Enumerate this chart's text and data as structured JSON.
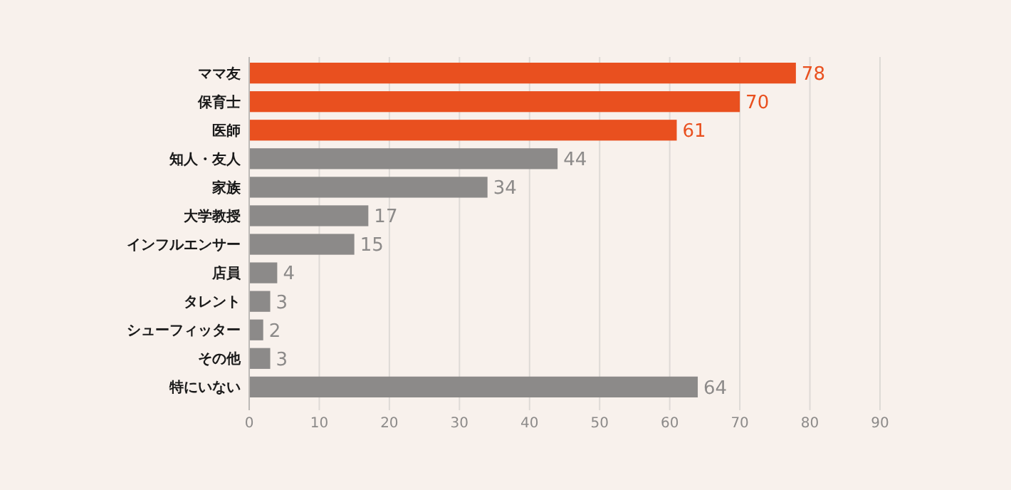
{
  "chart_data": {
    "type": "bar",
    "orientation": "horizontal",
    "categories": [
      "ママ友",
      "保育士",
      "医師",
      "知人・友人",
      "家族",
      "大学教授",
      "インフルエンサー",
      "店員",
      "タレント",
      "シューフィッター",
      "その他",
      "特にいない"
    ],
    "values": [
      78,
      70,
      61,
      44,
      34,
      17,
      15,
      4,
      3,
      2,
      3,
      64
    ],
    "colors": [
      "#e9501f",
      "#e9501f",
      "#e9501f",
      "#8c8a89",
      "#8c8a89",
      "#8c8a89",
      "#8c8a89",
      "#8c8a89",
      "#8c8a89",
      "#8c8a89",
      "#8c8a89",
      "#8c8a89"
    ],
    "xlim": [
      0,
      90
    ],
    "xticks": [
      0,
      10,
      20,
      30,
      40,
      50,
      60,
      70,
      80,
      90
    ],
    "grid": "x",
    "data_labels": true
  }
}
